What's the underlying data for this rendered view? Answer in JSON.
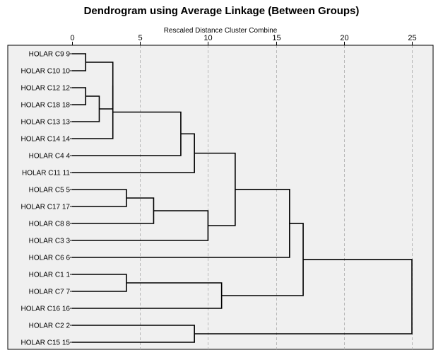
{
  "chart_data": {
    "type": "dendrogram",
    "title": "Dendrogram using Average Linkage (Between Groups)",
    "xlabel": "Rescaled Distance Cluster Combine",
    "xlim": [
      0,
      25
    ],
    "x_ticks": [
      "0",
      "5",
      "10",
      "15",
      "20",
      "25"
    ],
    "x_tick_values": [
      0,
      5,
      10,
      15,
      20,
      25
    ],
    "grid": true,
    "leaves": [
      {
        "id": "C9",
        "label": "HOLAR C9",
        "number": "9"
      },
      {
        "id": "C10",
        "label": "HOLAR C10",
        "number": "10"
      },
      {
        "id": "C12",
        "label": "HOLAR C12",
        "number": "12"
      },
      {
        "id": "C18",
        "label": "HOLAR C18",
        "number": "18"
      },
      {
        "id": "C13",
        "label": "HOLAR C13",
        "number": "13"
      },
      {
        "id": "C14",
        "label": "HOLAR C14",
        "number": "14"
      },
      {
        "id": "C4",
        "label": "HOLAR C4",
        "number": "4"
      },
      {
        "id": "C11",
        "label": "HOLAR C11",
        "number": "11"
      },
      {
        "id": "C5",
        "label": "HOLAR C5",
        "number": "5"
      },
      {
        "id": "C17",
        "label": "HOLAR C17",
        "number": "17"
      },
      {
        "id": "C8",
        "label": "HOLAR C8",
        "number": "8"
      },
      {
        "id": "C3",
        "label": "HOLAR C3",
        "number": "3"
      },
      {
        "id": "C6",
        "label": "HOLAR C6",
        "number": "6"
      },
      {
        "id": "C1",
        "label": "HOLAR C1",
        "number": "1"
      },
      {
        "id": "C7",
        "label": "HOLAR C7",
        "number": "7"
      },
      {
        "id": "C16",
        "label": "HOLAR C16",
        "number": "16"
      },
      {
        "id": "C2",
        "label": "HOLAR C2",
        "number": "2"
      },
      {
        "id": "C15",
        "label": "HOLAR C15",
        "number": "15"
      }
    ],
    "merges": [
      {
        "id": "A",
        "left": "C9",
        "right": "C10",
        "distance": 1
      },
      {
        "id": "B",
        "left": "C12",
        "right": "C18",
        "distance": 1
      },
      {
        "id": "C",
        "left": "B",
        "right": "C13",
        "distance": 2
      },
      {
        "id": "D",
        "left": "A",
        "right": "C",
        "distance": 3
      },
      {
        "id": "E",
        "left": "D",
        "right": "C14",
        "distance": 3
      },
      {
        "id": "F",
        "left": "E",
        "right": "C4",
        "distance": 8
      },
      {
        "id": "G",
        "left": "F",
        "right": "C11",
        "distance": 9
      },
      {
        "id": "H",
        "left": "C5",
        "right": "C17",
        "distance": 4
      },
      {
        "id": "I",
        "left": "H",
        "right": "C8",
        "distance": 6
      },
      {
        "id": "J",
        "left": "I",
        "right": "C3",
        "distance": 10
      },
      {
        "id": "K",
        "left": "G",
        "right": "J",
        "distance": 12
      },
      {
        "id": "L",
        "left": "K",
        "right": "C6",
        "distance": 16
      },
      {
        "id": "M",
        "left": "C1",
        "right": "C7",
        "distance": 4
      },
      {
        "id": "N",
        "left": "M",
        "right": "C16",
        "distance": 11
      },
      {
        "id": "O",
        "left": "L",
        "right": "N",
        "distance": 17
      },
      {
        "id": "P",
        "left": "C2",
        "right": "C15",
        "distance": 9
      },
      {
        "id": "Q",
        "left": "O",
        "right": "P",
        "distance": 25
      }
    ]
  }
}
